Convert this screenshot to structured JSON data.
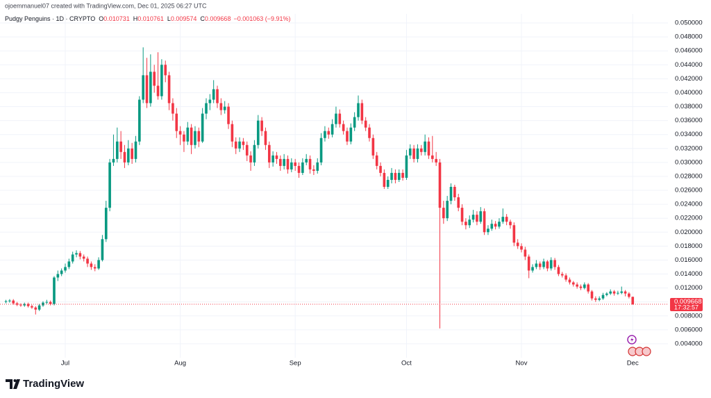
{
  "header": {
    "credit": "ojoemmanuel07 created with TradingView.com, Dec 01, 2025 06:27 UTC",
    "symbol": "Pudgy Penguins · 1D · CRYPTO",
    "ohlc": [
      {
        "label": "O",
        "value": "0.010731"
      },
      {
        "label": "H",
        "value": "0.010761"
      },
      {
        "label": "L",
        "value": "0.009574"
      },
      {
        "label": "C",
        "value": "0.009668"
      }
    ],
    "change": "−0.001063 (−9.91%)"
  },
  "chart_data": {
    "type": "candlestick",
    "up_color": "#089981",
    "down_color": "#f23645",
    "grid": true,
    "ylim": [
      0.002,
      0.0513
    ],
    "yticks": [
      {
        "value": 0.004,
        "label": "0.004000"
      },
      {
        "value": 0.006,
        "label": "0.006000"
      },
      {
        "value": 0.008,
        "label": "0.008000"
      },
      {
        "value": 0.01,
        "label": "0.010000"
      },
      {
        "value": 0.012,
        "label": "0.012000"
      },
      {
        "value": 0.014,
        "label": "0.014000"
      },
      {
        "value": 0.016,
        "label": "0.016000"
      },
      {
        "value": 0.018,
        "label": "0.018000"
      },
      {
        "value": 0.02,
        "label": "0.020000"
      },
      {
        "value": 0.022,
        "label": "0.022000"
      },
      {
        "value": 0.024,
        "label": "0.024000"
      },
      {
        "value": 0.026,
        "label": "0.026000"
      },
      {
        "value": 0.028,
        "label": "0.028000"
      },
      {
        "value": 0.03,
        "label": "0.030000"
      },
      {
        "value": 0.032,
        "label": "0.032000"
      },
      {
        "value": 0.034,
        "label": "0.034000"
      },
      {
        "value": 0.036,
        "label": "0.036000"
      },
      {
        "value": 0.038,
        "label": "0.038000"
      },
      {
        "value": 0.04,
        "label": "0.040000"
      },
      {
        "value": 0.042,
        "label": "0.042000"
      },
      {
        "value": 0.044,
        "label": "0.044000"
      },
      {
        "value": 0.046,
        "label": "0.046000"
      },
      {
        "value": 0.048,
        "label": "0.048000"
      },
      {
        "value": 0.05,
        "label": "0.050000"
      }
    ],
    "xlim": [
      -1.6,
      178.5
    ],
    "xticks": [
      {
        "value": 16,
        "label": "Jul"
      },
      {
        "value": 47,
        "label": "Aug"
      },
      {
        "value": 78,
        "label": "Sep"
      },
      {
        "value": 108,
        "label": "Oct"
      },
      {
        "value": 139,
        "label": "Nov"
      },
      {
        "value": 169,
        "label": "Dec"
      }
    ],
    "last_price": 0.009668,
    "countdown": "17:32:57",
    "candles": [
      [
        0.01,
        0.0103,
        0.0098,
        0.0101
      ],
      [
        0.0101,
        0.0104,
        0.0099,
        0.0102
      ],
      [
        0.0102,
        0.0104,
        0.0096,
        0.0098
      ],
      [
        0.0098,
        0.01,
        0.0094,
        0.0096
      ],
      [
        0.0096,
        0.0098,
        0.0093,
        0.0095
      ],
      [
        0.0095,
        0.0099,
        0.0093,
        0.0097
      ],
      [
        0.0097,
        0.0099,
        0.0092,
        0.0094
      ],
      [
        0.0094,
        0.0096,
        0.009,
        0.0092
      ],
      [
        0.0092,
        0.0094,
        0.0082,
        0.0089
      ],
      [
        0.0089,
        0.0097,
        0.0087,
        0.0095
      ],
      [
        0.0095,
        0.0101,
        0.0093,
        0.0099
      ],
      [
        0.0099,
        0.0103,
        0.0097,
        0.01
      ],
      [
        0.01,
        0.0102,
        0.0095,
        0.0097
      ],
      [
        0.0097,
        0.0137,
        0.0095,
        0.0135
      ],
      [
        0.0135,
        0.0145,
        0.013,
        0.014
      ],
      [
        0.014,
        0.0148,
        0.0137,
        0.0145
      ],
      [
        0.0145,
        0.0155,
        0.0142,
        0.015
      ],
      [
        0.015,
        0.0162,
        0.0147,
        0.0158
      ],
      [
        0.0158,
        0.0172,
        0.0155,
        0.0168
      ],
      [
        0.0168,
        0.0174,
        0.0164,
        0.017
      ],
      [
        0.017,
        0.0173,
        0.0161,
        0.0165
      ],
      [
        0.0165,
        0.0168,
        0.0158,
        0.0162
      ],
      [
        0.0162,
        0.0165,
        0.015,
        0.0155
      ],
      [
        0.0155,
        0.0158,
        0.0146,
        0.015
      ],
      [
        0.015,
        0.0154,
        0.0144,
        0.0148
      ],
      [
        0.0148,
        0.0164,
        0.0146,
        0.016
      ],
      [
        0.016,
        0.0196,
        0.0158,
        0.019
      ],
      [
        0.019,
        0.0245,
        0.0186,
        0.0235
      ],
      [
        0.0235,
        0.0305,
        0.023,
        0.03
      ],
      [
        0.03,
        0.034,
        0.0295,
        0.0305
      ],
      [
        0.0305,
        0.035,
        0.03,
        0.033
      ],
      [
        0.033,
        0.0345,
        0.0305,
        0.0315
      ],
      [
        0.0315,
        0.0325,
        0.0292,
        0.03
      ],
      [
        0.03,
        0.0332,
        0.0296,
        0.032
      ],
      [
        0.032,
        0.0328,
        0.0298,
        0.0305
      ],
      [
        0.0305,
        0.0338,
        0.03,
        0.033
      ],
      [
        0.033,
        0.0395,
        0.0325,
        0.039
      ],
      [
        0.039,
        0.0465,
        0.0385,
        0.0425
      ],
      [
        0.0425,
        0.045,
        0.0378,
        0.0385
      ],
      [
        0.0385,
        0.0455,
        0.038,
        0.043
      ],
      [
        0.043,
        0.044,
        0.04,
        0.041
      ],
      [
        0.041,
        0.0458,
        0.039,
        0.0395
      ],
      [
        0.0395,
        0.0448,
        0.039,
        0.044
      ],
      [
        0.044,
        0.0446,
        0.0415,
        0.0425
      ],
      [
        0.0425,
        0.043,
        0.0375,
        0.0385
      ],
      [
        0.0385,
        0.0392,
        0.036,
        0.037
      ],
      [
        0.037,
        0.0378,
        0.0335,
        0.0345
      ],
      [
        0.0345,
        0.0352,
        0.0325,
        0.034
      ],
      [
        0.034,
        0.0345,
        0.0315,
        0.033
      ],
      [
        0.033,
        0.0358,
        0.0325,
        0.035
      ],
      [
        0.035,
        0.0355,
        0.0312,
        0.0325
      ],
      [
        0.0325,
        0.0352,
        0.032,
        0.0345
      ],
      [
        0.0345,
        0.035,
        0.0322,
        0.033
      ],
      [
        0.033,
        0.0378,
        0.0328,
        0.037
      ],
      [
        0.037,
        0.0392,
        0.0362,
        0.0385
      ],
      [
        0.0385,
        0.0398,
        0.0375,
        0.039
      ],
      [
        0.039,
        0.0418,
        0.0385,
        0.0405
      ],
      [
        0.0405,
        0.041,
        0.0378,
        0.0385
      ],
      [
        0.0385,
        0.0392,
        0.0368,
        0.0375
      ],
      [
        0.0375,
        0.0388,
        0.037,
        0.038
      ],
      [
        0.038,
        0.0385,
        0.0348,
        0.0355
      ],
      [
        0.0355,
        0.036,
        0.0322,
        0.033
      ],
      [
        0.033,
        0.0336,
        0.0312,
        0.032
      ],
      [
        0.032,
        0.0336,
        0.0315,
        0.033
      ],
      [
        0.033,
        0.0335,
        0.0318,
        0.0325
      ],
      [
        0.0325,
        0.033,
        0.0302,
        0.031
      ],
      [
        0.031,
        0.0316,
        0.0288,
        0.03
      ],
      [
        0.03,
        0.0332,
        0.0295,
        0.0325
      ],
      [
        0.0325,
        0.0368,
        0.032,
        0.036
      ],
      [
        0.036,
        0.0365,
        0.0338,
        0.0345
      ],
      [
        0.0345,
        0.035,
        0.0318,
        0.0325
      ],
      [
        0.0325,
        0.033,
        0.0292,
        0.03
      ],
      [
        0.03,
        0.0316,
        0.0294,
        0.031
      ],
      [
        0.031,
        0.0315,
        0.0298,
        0.0305
      ],
      [
        0.0305,
        0.031,
        0.0288,
        0.0295
      ],
      [
        0.0295,
        0.0312,
        0.029,
        0.0305
      ],
      [
        0.0305,
        0.031,
        0.0284,
        0.029
      ],
      [
        0.029,
        0.0306,
        0.0286,
        0.03
      ],
      [
        0.03,
        0.0305,
        0.0288,
        0.0295
      ],
      [
        0.0295,
        0.03,
        0.0278,
        0.0285
      ],
      [
        0.0285,
        0.0306,
        0.0282,
        0.03
      ],
      [
        0.03,
        0.0312,
        0.0296,
        0.0305
      ],
      [
        0.0305,
        0.031,
        0.0284,
        0.029
      ],
      [
        0.029,
        0.0296,
        0.0282,
        0.0288
      ],
      [
        0.0288,
        0.0306,
        0.0284,
        0.03
      ],
      [
        0.03,
        0.0342,
        0.0296,
        0.0335
      ],
      [
        0.0335,
        0.0352,
        0.033,
        0.0345
      ],
      [
        0.0345,
        0.035,
        0.0334,
        0.034
      ],
      [
        0.034,
        0.0362,
        0.0336,
        0.0355
      ],
      [
        0.0355,
        0.038,
        0.035,
        0.037
      ],
      [
        0.037,
        0.0376,
        0.035,
        0.0355
      ],
      [
        0.0355,
        0.036,
        0.034,
        0.0345
      ],
      [
        0.0345,
        0.035,
        0.0325,
        0.033
      ],
      [
        0.033,
        0.0356,
        0.0326,
        0.035
      ],
      [
        0.035,
        0.0372,
        0.0345,
        0.0365
      ],
      [
        0.0365,
        0.0396,
        0.036,
        0.0385
      ],
      [
        0.0385,
        0.039,
        0.0355,
        0.036
      ],
      [
        0.036,
        0.0365,
        0.0345,
        0.035
      ],
      [
        0.035,
        0.0355,
        0.033,
        0.0335
      ],
      [
        0.0335,
        0.034,
        0.0305,
        0.031
      ],
      [
        0.031,
        0.0315,
        0.029,
        0.0295
      ],
      [
        0.0295,
        0.03,
        0.028,
        0.0285
      ],
      [
        0.0285,
        0.029,
        0.0262,
        0.0265
      ],
      [
        0.0265,
        0.028,
        0.0262,
        0.0275
      ],
      [
        0.0275,
        0.0292,
        0.027,
        0.0285
      ],
      [
        0.0285,
        0.029,
        0.027,
        0.0275
      ],
      [
        0.0275,
        0.029,
        0.0272,
        0.0285
      ],
      [
        0.0285,
        0.029,
        0.0274,
        0.0278
      ],
      [
        0.0278,
        0.0318,
        0.0275,
        0.031
      ],
      [
        0.031,
        0.0326,
        0.0305,
        0.032
      ],
      [
        0.032,
        0.0325,
        0.03,
        0.0305
      ],
      [
        0.0305,
        0.0326,
        0.03,
        0.032
      ],
      [
        0.032,
        0.0325,
        0.031,
        0.0315
      ],
      [
        0.0315,
        0.034,
        0.031,
        0.033
      ],
      [
        0.033,
        0.0336,
        0.0305,
        0.031
      ],
      [
        0.031,
        0.0338,
        0.03,
        0.0305
      ],
      [
        0.0305,
        0.0315,
        0.0295,
        0.03
      ],
      [
        0.03,
        0.0305,
        0.0062,
        0.0235
      ],
      [
        0.0235,
        0.0245,
        0.0212,
        0.022
      ],
      [
        0.022,
        0.0252,
        0.0216,
        0.0245
      ],
      [
        0.0245,
        0.027,
        0.024,
        0.0265
      ],
      [
        0.0265,
        0.0268,
        0.0245,
        0.025
      ],
      [
        0.025,
        0.0255,
        0.023,
        0.0235
      ],
      [
        0.0235,
        0.024,
        0.021,
        0.0215
      ],
      [
        0.0215,
        0.022,
        0.0204,
        0.021
      ],
      [
        0.021,
        0.0224,
        0.0206,
        0.0218
      ],
      [
        0.0218,
        0.0232,
        0.0214,
        0.0225
      ],
      [
        0.0225,
        0.023,
        0.021,
        0.0215
      ],
      [
        0.0215,
        0.0236,
        0.0212,
        0.023
      ],
      [
        0.023,
        0.0234,
        0.0196,
        0.02
      ],
      [
        0.02,
        0.021,
        0.0196,
        0.0205
      ],
      [
        0.0205,
        0.0218,
        0.0202,
        0.0212
      ],
      [
        0.0212,
        0.0216,
        0.0204,
        0.0208
      ],
      [
        0.0208,
        0.022,
        0.0205,
        0.0215
      ],
      [
        0.0215,
        0.0234,
        0.0212,
        0.0222
      ],
      [
        0.0222,
        0.0226,
        0.021,
        0.0215
      ],
      [
        0.0215,
        0.0218,
        0.0205,
        0.021
      ],
      [
        0.021,
        0.0214,
        0.018,
        0.0185
      ],
      [
        0.0185,
        0.019,
        0.0176,
        0.018
      ],
      [
        0.018,
        0.0184,
        0.0171,
        0.0175
      ],
      [
        0.0175,
        0.0179,
        0.016,
        0.0165
      ],
      [
        0.0165,
        0.0168,
        0.0134,
        0.0145
      ],
      [
        0.0145,
        0.0154,
        0.0142,
        0.015
      ],
      [
        0.015,
        0.016,
        0.0147,
        0.0155
      ],
      [
        0.0155,
        0.0158,
        0.0146,
        0.015
      ],
      [
        0.015,
        0.0162,
        0.0147,
        0.0158
      ],
      [
        0.0158,
        0.016,
        0.0144,
        0.0148
      ],
      [
        0.0148,
        0.0164,
        0.0145,
        0.016
      ],
      [
        0.016,
        0.0163,
        0.0146,
        0.015
      ],
      [
        0.015,
        0.0153,
        0.0137,
        0.014
      ],
      [
        0.014,
        0.0143,
        0.0135,
        0.0138
      ],
      [
        0.0138,
        0.0141,
        0.0129,
        0.0132
      ],
      [
        0.0132,
        0.0135,
        0.0125,
        0.0128
      ],
      [
        0.0128,
        0.013,
        0.0122,
        0.0125
      ],
      [
        0.0125,
        0.0128,
        0.0119,
        0.0122
      ],
      [
        0.0122,
        0.0125,
        0.0117,
        0.012
      ],
      [
        0.012,
        0.0128,
        0.0118,
        0.0125
      ],
      [
        0.0125,
        0.0127,
        0.0112,
        0.0115
      ],
      [
        0.0115,
        0.0117,
        0.0102,
        0.0105
      ],
      [
        0.0105,
        0.0108,
        0.01,
        0.0103
      ],
      [
        0.0103,
        0.0108,
        0.0101,
        0.0105
      ],
      [
        0.0105,
        0.0113,
        0.0103,
        0.011
      ],
      [
        0.011,
        0.0114,
        0.0108,
        0.0112
      ],
      [
        0.0112,
        0.0118,
        0.011,
        0.0115
      ],
      [
        0.0115,
        0.0117,
        0.0109,
        0.0112
      ],
      [
        0.0112,
        0.0116,
        0.011,
        0.0113
      ],
      [
        0.0113,
        0.0122,
        0.0111,
        0.0115
      ],
      [
        0.0115,
        0.0117,
        0.0108,
        0.0112
      ],
      [
        0.0112,
        0.0114,
        0.0105,
        0.010731
      ],
      [
        0.010731,
        0.010761,
        0.009574,
        0.009668
      ]
    ]
  },
  "brand": "TradingView"
}
